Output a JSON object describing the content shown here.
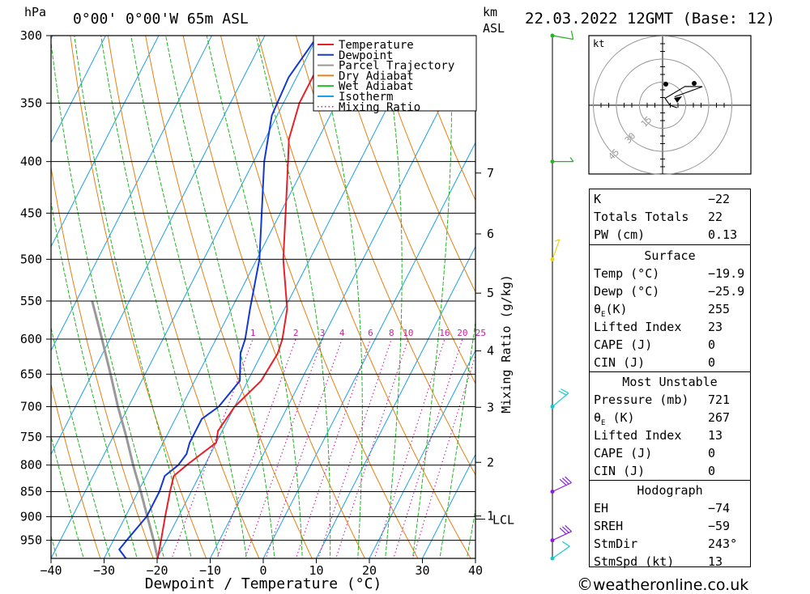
{
  "header": {
    "pressure_unit": "hPa",
    "location": "0°00' 0°00'W 65m ASL",
    "height_unit_line1": "km",
    "height_unit_line2": "ASL",
    "datetime": "22.03.2022 12GMT (Base: 12)"
  },
  "chart_data": {
    "type": "skew-t",
    "xlabel": "Dewpoint / Temperature (°C)",
    "ylabel": "hPa",
    "right_axis_label": "km ASL",
    "mixing_ratio_axis_label": "Mixing Ratio (g/kg)",
    "xlim": [
      -40,
      40
    ],
    "ylim": [
      990,
      300
    ],
    "x_ticks": [
      -40,
      -30,
      -20,
      -10,
      0,
      10,
      20,
      30,
      40
    ],
    "x_tick_labels": [
      "−40",
      "−30",
      "−20",
      "−10",
      "0",
      "10",
      "20",
      "30",
      "40"
    ],
    "pressure_levels": [
      300,
      350,
      400,
      450,
      500,
      550,
      600,
      650,
      700,
      750,
      800,
      850,
      900,
      950
    ],
    "km_ticks": [
      {
        "km": 1,
        "label": "1"
      },
      {
        "km": 2,
        "label": "2"
      },
      {
        "km": 3,
        "label": "3"
      },
      {
        "km": 4,
        "label": "4"
      },
      {
        "km": 5,
        "label": "5"
      },
      {
        "km": 6,
        "label": "6"
      },
      {
        "km": 7,
        "label": "7"
      }
    ],
    "lcl": {
      "label": "LCL",
      "pressure": 905
    },
    "mixing_ratio_labels": [
      "1",
      "2",
      "3",
      "4",
      "6",
      "8",
      "10",
      "16",
      "20",
      "25"
    ],
    "mixing_ratio_values": [
      1,
      2,
      3,
      4,
      6,
      8,
      10,
      16,
      20,
      25
    ],
    "legend": [
      {
        "name": "Temperature",
        "color": "#e8202a",
        "style": "solid"
      },
      {
        "name": "Dewpoint",
        "color": "#1438d2",
        "style": "solid"
      },
      {
        "name": "Parcel Trajectory",
        "color": "#999999",
        "style": "solid"
      },
      {
        "name": "Dry Adiabat",
        "color": "#e87f10",
        "style": "solid"
      },
      {
        "name": "Wet Adiabat",
        "color": "#22b422",
        "style": "solid"
      },
      {
        "name": "Isotherm",
        "color": "#1aa0e8",
        "style": "solid"
      },
      {
        "name": "Mixing Ratio",
        "color": "#c81ea0",
        "style": "dotted"
      }
    ],
    "legend_placement": "top-right",
    "temperature": {
      "p": [
        990,
        950,
        900,
        850,
        820,
        800,
        760,
        740,
        700,
        660,
        620,
        600,
        560,
        500,
        450,
        400,
        380,
        350,
        320,
        300
      ],
      "t": [
        -19.9,
        -21.0,
        -22.5,
        -24.0,
        -24.8,
        -23.4,
        -20.0,
        -20.8,
        -20.0,
        -17.5,
        -17.0,
        -17.5,
        -19.5,
        -25.0,
        -29.0,
        -33.5,
        -35.5,
        -37.0,
        -37.0,
        -36.5
      ]
    },
    "dewpoint": {
      "p": [
        990,
        970,
        950,
        900,
        850,
        820,
        800,
        780,
        760,
        720,
        700,
        660,
        620,
        600,
        560,
        500,
        450,
        400,
        360,
        330,
        300
      ],
      "t": [
        -25.9,
        -28.0,
        -27.5,
        -26.0,
        -26.0,
        -26.5,
        -25.0,
        -24.5,
        -25.0,
        -25.0,
        -23.0,
        -21.5,
        -24.0,
        -24.5,
        -26.5,
        -29.5,
        -33.5,
        -38.0,
        -41.0,
        -41.5,
        -40.0
      ]
    },
    "parcel": {
      "p": [
        990,
        950,
        905,
        850,
        800,
        750,
        700,
        650,
        600,
        550
      ],
      "t": [
        -19.9,
        -22.4,
        -25.5,
        -29.5,
        -33.5,
        -37.5,
        -42.0,
        -46.5,
        -51.5,
        -57.0
      ]
    },
    "winds": [
      {
        "p": 990,
        "dir": 235,
        "kt": 10,
        "color": "#18c8c8"
      },
      {
        "p": 950,
        "dir": 245,
        "kt": 30,
        "color": "#8a1ee0"
      },
      {
        "p": 850,
        "dir": 245,
        "kt": 30,
        "color": "#8a1ee0"
      },
      {
        "p": 700,
        "dir": 230,
        "kt": 20,
        "color": "#18c8c8"
      },
      {
        "p": 500,
        "dir": 200,
        "kt": 5,
        "color": "#e8d218"
      },
      {
        "p": 400,
        "dir": 270,
        "kt": 5,
        "color": "#22b422"
      },
      {
        "p": 300,
        "dir": 280,
        "kt": 10,
        "color": "#22b422"
      }
    ]
  },
  "hodograph": {
    "unit": "kt",
    "rings": [
      15,
      30,
      45
    ],
    "ring_labels": [
      "15",
      "30",
      "45"
    ]
  },
  "indices": {
    "general": [
      {
        "key": "K",
        "value": "−22"
      },
      {
        "key": "Totals Totals",
        "value": "22"
      },
      {
        "key": "PW (cm)",
        "value": "0.13"
      }
    ],
    "surface": {
      "title": "Surface",
      "temp_label": "Temp (°C)",
      "temp": "−19.9",
      "dewp_label": "Dewp (°C)",
      "dewp": "−25.9",
      "theta_sym": "θ",
      "theta_sub": "E",
      "theta_unit": "(K)",
      "theta": "255",
      "li_label": "Lifted Index",
      "li": "23",
      "cape_label": "CAPE (J)",
      "cape": "0",
      "cin_label": "CIN (J)",
      "cin": "0"
    },
    "most_unstable": {
      "title": "Most Unstable",
      "pressure_label": "Pressure (mb)",
      "pressure": "721",
      "theta_sym": "θ",
      "theta_sub": "E",
      "theta_unit": " (K)",
      "theta": "267",
      "li_label": "Lifted Index",
      "li": "13",
      "cape_label": "CAPE (J)",
      "cape": "0",
      "cin_label": "CIN (J)",
      "cin": "0"
    },
    "hodograph": {
      "title": "Hodograph",
      "rows": [
        {
          "key": "EH",
          "value": "−74"
        },
        {
          "key": "SREH",
          "value": "−59"
        },
        {
          "key": "StmDir",
          "value": "243°"
        },
        {
          "key": "StmSpd (kt)",
          "value": "13"
        }
      ]
    }
  },
  "credit": {
    "symbol": "©",
    "text": "weatheronline.co.uk"
  }
}
